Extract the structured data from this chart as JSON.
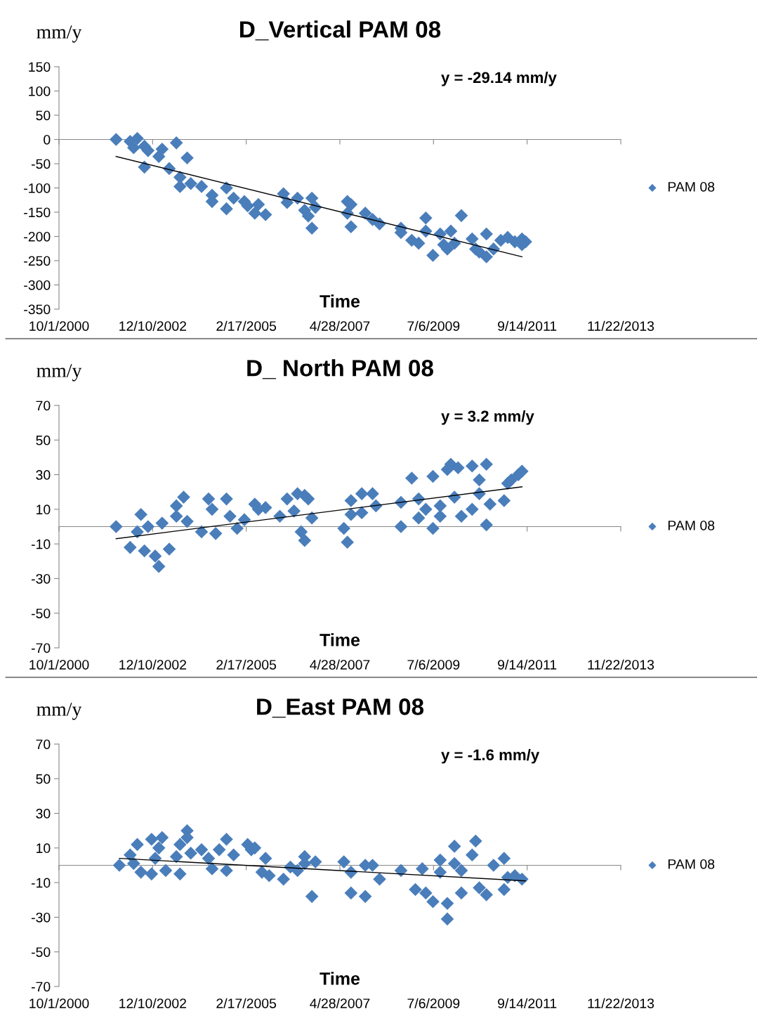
{
  "chart_data": [
    {
      "type": "scatter",
      "title": "D_Vertical PAM 08",
      "xlabel": "Time",
      "ylabel": "mm/y",
      "annotations": [
        "y = -29.14 mm/y"
      ],
      "legend": "right",
      "xlim": [
        "2000-10-01",
        "2013-11-22"
      ],
      "xticks": [
        {
          "value": "2000-10-01",
          "label": "10/1/2000"
        },
        {
          "value": "2002-12-10",
          "label": "12/10/2002"
        },
        {
          "value": "2005-02-17",
          "label": "2/17/2005"
        },
        {
          "value": "2007-04-28",
          "label": "4/28/2007"
        },
        {
          "value": "2009-07-06",
          "label": "7/6/2009"
        },
        {
          "value": "2011-09-14",
          "label": "9/14/2011"
        },
        {
          "value": "2013-11-22",
          "label": "11/22/2013"
        }
      ],
      "ylim": [
        -350,
        150
      ],
      "yticks": [
        -350,
        -300,
        -250,
        -200,
        -150,
        -100,
        -50,
        0,
        50,
        100,
        150
      ],
      "series": [
        {
          "name": "PAM 08",
          "color": "#4a7ebb",
          "marker": "diamond",
          "x": [
            "2002-02",
            "2002-06",
            "2002-08",
            "2002-07",
            "2002-10",
            "2002-11",
            "2003-03",
            "2003-07",
            "2002-10",
            "2003-02",
            "2003-05",
            "2003-10",
            "2003-08",
            "2003-08",
            "2003-11",
            "2004-02",
            "2004-05",
            "2004-05",
            "2004-09",
            "2004-09",
            "2004-11",
            "2005-02",
            "2005-06",
            "2005-05",
            "2005-08",
            "2005-03",
            "2006-01",
            "2006-02",
            "2006-05",
            "2006-07",
            "2006-09",
            "2006-08",
            "2006-09",
            "2006-10",
            "2007-07",
            "2007-08",
            "2007-07",
            "2007-08",
            "2007-12",
            "2008-02",
            "2008-04",
            "2008-10",
            "2008-10",
            "2009-01",
            "2009-03",
            "2009-05",
            "2009-05",
            "2009-07",
            "2009-09",
            "2009-10",
            "2009-11",
            "2009-12",
            "2010-01",
            "2010-03",
            "2010-06",
            "2010-07",
            "2010-08",
            "2010-10",
            "2010-10",
            "2010-12",
            "2011-02",
            "2011-04",
            "2011-06",
            "2011-08",
            "2011-08",
            "2011-09"
          ],
          "values": [
            0,
            -4,
            2,
            -17,
            -14,
            -23,
            -20,
            -7,
            -57,
            -35,
            -60,
            -38,
            -78,
            -97,
            -91,
            -97,
            -115,
            -128,
            -100,
            -143,
            -121,
            -128,
            -134,
            -152,
            -155,
            -137,
            -112,
            -130,
            -121,
            -146,
            -121,
            -158,
            -183,
            -140,
            -128,
            -134,
            -152,
            -180,
            -152,
            -165,
            -174,
            -183,
            -192,
            -208,
            -214,
            -162,
            -189,
            -239,
            -195,
            -217,
            -226,
            -189,
            -214,
            -157,
            -205,
            -226,
            -232,
            -195,
            -242,
            -226,
            -208,
            -202,
            -211,
            -205,
            -217,
            -211
          ]
        },
        {
          "type": "line",
          "color": "#000000",
          "x": [
            "2002-02",
            "2011-08"
          ],
          "values": [
            -35,
            -242
          ]
        }
      ]
    },
    {
      "type": "scatter",
      "title": "D_ North PAM 08",
      "xlabel": "Time",
      "ylabel": "mm/y",
      "annotations": [
        "y = 3.2 mm/y"
      ],
      "legend": "right",
      "xlim": [
        "2000-10-01",
        "2013-11-22"
      ],
      "xticks": [
        {
          "value": "2000-10-01",
          "label": "10/1/2000"
        },
        {
          "value": "2002-12-10",
          "label": "12/10/2002"
        },
        {
          "value": "2005-02-17",
          "label": "2/17/2005"
        },
        {
          "value": "2007-04-28",
          "label": "4/28/2007"
        },
        {
          "value": "2009-07-06",
          "label": "7/6/2009"
        },
        {
          "value": "2011-09-14",
          "label": "9/14/2011"
        },
        {
          "value": "2013-11-22",
          "label": "11/22/2013"
        }
      ],
      "ylim": [
        -70,
        70
      ],
      "yticks": [
        -70,
        -50,
        -30,
        -10,
        10,
        30,
        50,
        70
      ],
      "series": [
        {
          "name": "PAM 08",
          "color": "#4a7ebb",
          "marker": "diamond",
          "x": [
            "2002-02",
            "2002-09",
            "2002-06",
            "2002-08",
            "2002-11",
            "2002-10",
            "2003-02",
            "2003-01",
            "2003-05",
            "2003-03",
            "2003-07",
            "2003-07",
            "2003-09",
            "2003-10",
            "2004-02",
            "2004-04",
            "2004-05",
            "2004-06",
            "2004-09",
            "2004-10",
            "2004-12",
            "2005-02",
            "2005-05",
            "2005-06",
            "2005-08",
            "2005-12",
            "2006-02",
            "2006-04",
            "2006-07",
            "2006-05",
            "2006-07",
            "2006-08",
            "2006-06",
            "2006-09",
            "2007-06",
            "2007-07",
            "2007-08",
            "2007-08",
            "2007-11",
            "2007-11",
            "2008-02",
            "2008-03",
            "2008-10",
            "2008-10",
            "2009-01",
            "2009-03",
            "2009-03",
            "2009-05",
            "2009-07",
            "2009-07",
            "2009-09",
            "2009-09",
            "2009-11",
            "2009-12",
            "2010-02",
            "2010-01",
            "2010-03",
            "2010-06",
            "2010-06",
            "2010-08",
            "2010-08",
            "2010-10",
            "2010-10",
            "2010-11",
            "2011-03",
            "2011-04",
            "2011-05",
            "2011-07",
            "2011-08"
          ],
          "values": [
            0,
            7,
            -12,
            -3,
            0,
            -14,
            -23,
            -17,
            -13,
            2,
            12,
            6,
            17,
            3,
            -3,
            16,
            10,
            -4,
            16,
            6,
            -1,
            4,
            13,
            10,
            11,
            6,
            16,
            9,
            -8,
            19,
            18,
            16,
            -3,
            5,
            -1,
            -9,
            15,
            7,
            19,
            8,
            19,
            12,
            14,
            0,
            28,
            16,
            5,
            10,
            29,
            -1,
            12,
            6,
            33,
            36,
            34,
            17,
            6,
            35,
            10,
            27,
            19,
            36,
            1,
            13,
            15,
            25,
            27,
            30,
            32
          ]
        },
        {
          "type": "line",
          "color": "#000000",
          "x": [
            "2002-02",
            "2011-08"
          ],
          "values": [
            -7,
            23
          ]
        }
      ]
    },
    {
      "type": "scatter",
      "title": "D_East PAM 08",
      "xlabel": "Time",
      "ylabel": "mm/y",
      "annotations": [
        "y = -1.6 mm/y"
      ],
      "legend": "right",
      "xlim": [
        "2000-10-01",
        "2013-11-22"
      ],
      "xticks": [
        {
          "value": "2000-10-01",
          "label": "10/1/2000"
        },
        {
          "value": "2002-12-10",
          "label": "12/10/2002"
        },
        {
          "value": "2005-02-17",
          "label": "2/17/2005"
        },
        {
          "value": "2007-04-28",
          "label": "4/28/2007"
        },
        {
          "value": "2009-07-06",
          "label": "7/6/2009"
        },
        {
          "value": "2011-09-14",
          "label": "9/14/2011"
        },
        {
          "value": "2013-11-22",
          "label": "11/22/2013"
        }
      ],
      "ylim": [
        -70,
        70
      ],
      "yticks": [
        -70,
        -50,
        -30,
        -10,
        10,
        30,
        50,
        70
      ],
      "series": [
        {
          "name": "PAM 08",
          "color": "#4a7ebb",
          "marker": "diamond",
          "x": [
            "2002-03",
            "2002-07",
            "2002-08",
            "2002-06",
            "2002-09",
            "2002-12",
            "2003-03",
            "2003-01",
            "2003-02",
            "2002-12",
            "2003-04",
            "2003-07",
            "2003-08",
            "2003-08",
            "2003-10",
            "2003-10",
            "2003-11",
            "2004-02",
            "2004-04",
            "2004-05",
            "2004-07",
            "2004-09",
            "2004-09",
            "2004-11",
            "2005-03",
            "2005-04",
            "2005-05",
            "2005-08",
            "2005-07",
            "2005-09",
            "2006-01",
            "2006-03",
            "2006-05",
            "2006-07",
            "2006-07",
            "2006-09",
            "2006-10",
            "2007-06",
            "2007-08",
            "2007-08",
            "2007-12",
            "2007-12",
            "2008-02",
            "2008-04",
            "2008-10",
            "2009-02",
            "2009-04",
            "2009-05",
            "2009-07",
            "2009-09",
            "2009-09",
            "2009-11",
            "2009-11",
            "2010-01",
            "2010-01",
            "2010-03",
            "2010-03",
            "2010-07",
            "2010-06",
            "2010-08",
            "2010-10",
            "2010-12",
            "2011-03",
            "2011-03",
            "2011-04",
            "2011-06",
            "2011-08"
          ],
          "values": [
            0,
            1,
            12,
            6,
            -4,
            15,
            16,
            4,
            10,
            -5,
            -3,
            5,
            12,
            -5,
            20,
            16,
            7,
            9,
            4,
            -2,
            9,
            -3,
            15,
            6,
            12,
            9,
            10,
            4,
            -4,
            -6,
            -8,
            -1,
            -3,
            5,
            1,
            -18,
            2,
            2,
            -4,
            -16,
            0,
            -18,
            0,
            -8,
            -3,
            -14,
            -2,
            -16,
            -21,
            3,
            -4,
            -22,
            -31,
            11,
            1,
            -16,
            -3,
            14,
            6,
            -13,
            -17,
            0,
            4,
            -14,
            -7,
            -6,
            -8
          ]
        },
        {
          "type": "line",
          "color": "#000000",
          "x": [
            "2002-03",
            "2011-09"
          ],
          "values": [
            4,
            -9
          ]
        }
      ]
    }
  ]
}
